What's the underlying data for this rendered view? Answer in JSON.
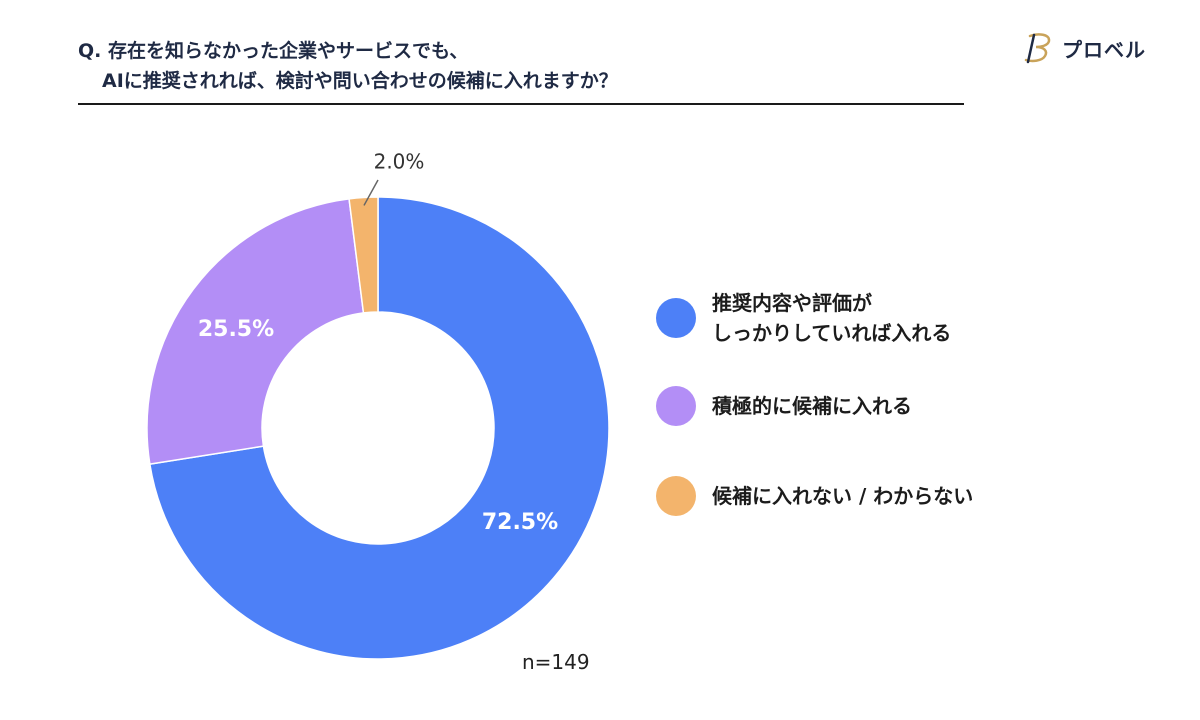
{
  "question": {
    "line1": "Q. 存在を知らなかった企業やサービスでも、",
    "line2": "AIに推奨されれば、検討や問い合わせの候補に入れますか？"
  },
  "brand": {
    "name": "プロベル"
  },
  "sample": "n=149",
  "colors": {
    "blue": "#4d80f7",
    "purple": "#b38ef6",
    "orange": "#f3b46c"
  },
  "chart_data": {
    "type": "pie",
    "donut": true,
    "slices": [
      {
        "name": "推奨内容や評価がしっかりしていれば入れる",
        "value": 72.5,
        "label": "72.5%",
        "color": "#4d80f7"
      },
      {
        "name": "積極的に候補に入れる",
        "value": 25.5,
        "label": "25.5%",
        "color": "#b38ef6"
      },
      {
        "name": "候補に入れない / わからない",
        "value": 2.0,
        "label": "2.0%",
        "color": "#f3b46c"
      }
    ]
  },
  "legend": [
    {
      "label": "推奨内容や評価が\nしっかりしていれば入れる",
      "color": "#4d80f7"
    },
    {
      "label": "積極的に候補に入れる",
      "color": "#b38ef6"
    },
    {
      "label": "候補に入れない / わからない",
      "color": "#f3b46c"
    }
  ]
}
